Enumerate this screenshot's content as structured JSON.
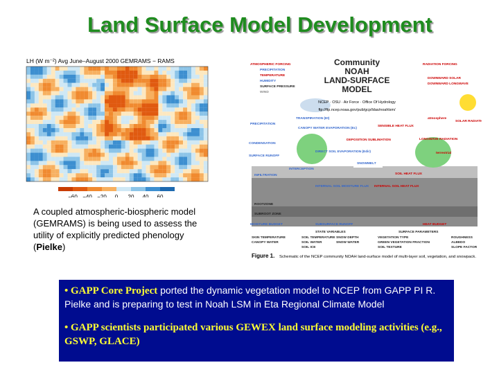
{
  "title": "Land Surface Model Development",
  "map": {
    "title": "LH (W m⁻²) Avg June–August 2000 GEMRAMS − RAMS",
    "colorbar_labels": [
      "−60",
      "−40",
      "−20",
      "0",
      "20",
      "40",
      "60"
    ]
  },
  "caption": {
    "text": "A coupled atmospheric-biospheric model (GEMRAMS) is being used to assess the utility of explicitly predicted phenology (",
    "bold": "Pielke",
    "end": ")"
  },
  "diagram": {
    "title_lines": [
      "Community",
      "NOAH",
      "LAND-SURFACE",
      "MODEL"
    ],
    "subtitle": "NCEP · OSU · Air Force · Office Of Hydrology",
    "url": "ftp://ftp.ncep.noaa.gov/pub/gcp/ldas/noahlsm/",
    "labels": [
      "ATMOSPHERIC FORCING",
      "PRECIPITATION",
      "TEMPERATURE",
      "HUMIDITY",
      "SURFACE PRESSURE",
      "WIND",
      "RADIATION FORCING",
      "DOWNWARD SOLAR",
      "DOWNWARD LONGWAVE",
      "PRECIPITATION",
      "TRANSPIRATION (Et)",
      "CANOPY WATER EVAPORATION (Ec)",
      "SENSIBLE HEAT FLUX",
      "CONDENSATION",
      "DEPOSITION SUBLIMATION",
      "DIRECT SOIL EVAPORATION (Edir)",
      "SURFACE RUNOFF",
      "INTERCEPTION",
      "SNOWMELT",
      "SOIL HEAT FLUX",
      "INFILTRATION",
      "INTERNAL SOIL MOISTURE FLUX",
      "INTERNAL SOIL HEAT FLUX",
      "ROOTZONE",
      "SUBROOT ZONE",
      "MOISTURE BUDGET",
      "SUBSURFACE RUNOFF",
      "HEAT BUDGET",
      "atmosphere",
      "terrestrial",
      "SOLAR RADIATION",
      "LONGWAVE RADIATION",
      "STATE VARIABLES",
      "SURFACE PARAMETERS",
      "SKIN TEMPERATURE",
      "CANOPY WATER",
      "SOIL TEMPERATURE",
      "SOIL WATER",
      "SOIL ICE",
      "SNOW DEPTH",
      "SNOW WATER",
      "VEGETATION TYPE",
      "GREEN VEGETATION FRACTION",
      "SOIL TEXTURE",
      "ROUGHNESS",
      "ALBEDO",
      "SLOPE FACTOR"
    ],
    "figure_label": "Figure 1.",
    "figure_text": "Schematic of the NCEP community NOAH land-surface model of multi-layer soil, vegetation, and snowpack."
  },
  "bullets": [
    {
      "bold": "•  GAPP Core Project",
      "text": " ported the dynamic vegetation model to NCEP from GAPP PI R. Pielke and is preparing to test in Noah LSM in Eta Regional Climate Model"
    },
    {
      "bold": "• GAPP scientists participated various GEWEX land surface modeling activities (e.g.,  GSWP, GLACE)"
    }
  ]
}
